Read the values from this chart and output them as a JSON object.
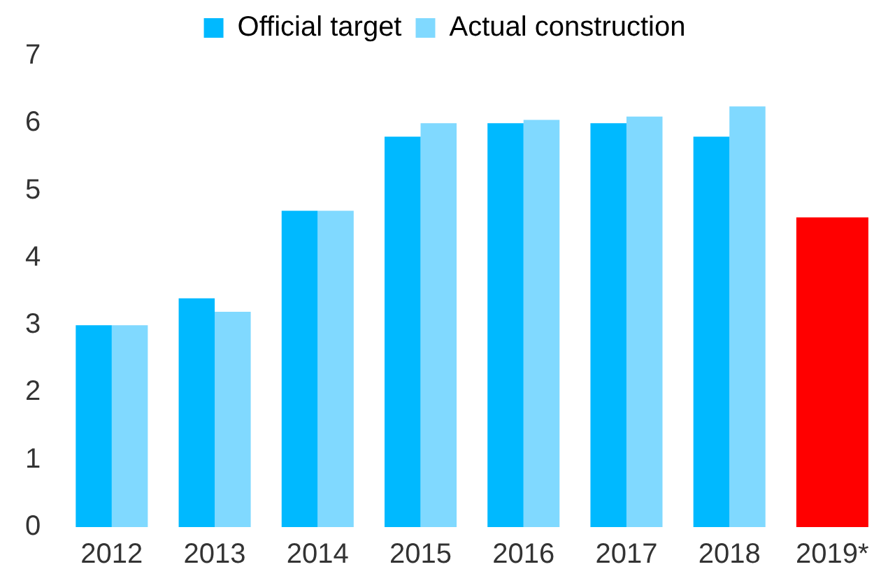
{
  "chart_data": {
    "type": "bar",
    "categories": [
      "2012",
      "2013",
      "2014",
      "2015",
      "2016",
      "2017",
      "2018",
      "2019*"
    ],
    "series": [
      {
        "name": "Official target",
        "color": "#00b9ff",
        "colors": [
          "#00b9ff",
          "#00b9ff",
          "#00b9ff",
          "#00b9ff",
          "#00b9ff",
          "#00b9ff",
          "#00b9ff",
          "#ff0000"
        ],
        "values": [
          3.0,
          3.4,
          4.7,
          5.8,
          6.0,
          6.0,
          5.8,
          4.6
        ]
      },
      {
        "name": "Actual construction",
        "color": "#80d9ff",
        "values": [
          3.0,
          3.2,
          4.7,
          6.0,
          6.05,
          6.1,
          6.25,
          null
        ]
      }
    ],
    "ylim": [
      0,
      7
    ],
    "yticks": [
      0,
      1,
      2,
      3,
      4,
      5,
      6,
      7
    ],
    "grid": false,
    "legend": "top"
  }
}
